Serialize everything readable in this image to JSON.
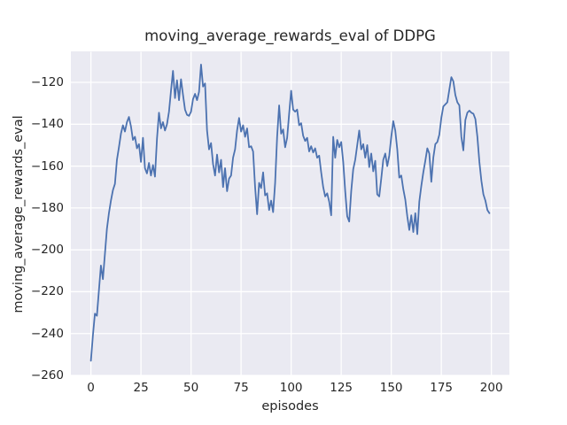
{
  "chart_data": {
    "type": "line",
    "title": "moving_average_rewards_eval of DDPG",
    "xlabel": "episodes",
    "ylabel": "moving_average_rewards_eval",
    "x_ticks": [
      0,
      25,
      50,
      75,
      100,
      125,
      150,
      175,
      200
    ],
    "x_tick_labels": [
      "0",
      "25",
      "50",
      "75",
      "100",
      "125",
      "150",
      "175",
      "200"
    ],
    "y_ticks": [
      -260,
      -240,
      -220,
      -200,
      -180,
      -160,
      -140,
      -120
    ],
    "y_tick_labels": [
      "−260",
      "−240",
      "−220",
      "−200",
      "−180",
      "−160",
      "−140",
      "−120"
    ],
    "xlim": [
      -10,
      209
    ],
    "ylim": [
      -260.2,
      -105.4
    ],
    "grid": true,
    "legend_position": "none",
    "style": {
      "fig_bg": "#ffffff",
      "axes_bg": "#eaeaf2",
      "grid_color": "#ffffff",
      "line_color": "#4c72b0",
      "text_color": "#262626"
    },
    "series": [
      {
        "name": "moving_average_rewards_eval",
        "x_start": 0,
        "x_step": 1,
        "values": [
          -253,
          -241,
          -230.5,
          -231.5,
          -219.5,
          -207.5,
          -214,
          -202,
          -190,
          -182.5,
          -176.5,
          -171.5,
          -168.5,
          -157,
          -151,
          -144.5,
          -140.5,
          -143.5,
          -139,
          -136.5,
          -141,
          -147.5,
          -146,
          -151.5,
          -149.5,
          -158,
          -146.5,
          -161,
          -163.5,
          -158.5,
          -164.5,
          -159.5,
          -165,
          -147,
          -134.5,
          -142,
          -139,
          -143,
          -140,
          -134,
          -124,
          -114.5,
          -127.5,
          -119,
          -128.5,
          -118.5,
          -126,
          -133,
          -135.5,
          -136,
          -134,
          -128,
          -125.5,
          -128.5,
          -124.5,
          -111.5,
          -122,
          -120.5,
          -143,
          -152,
          -149,
          -159,
          -164.5,
          -154.5,
          -163,
          -157,
          -170,
          -161,
          -172,
          -166,
          -164.5,
          -156,
          -152,
          -143,
          -137,
          -143.5,
          -140.5,
          -146,
          -142,
          -151,
          -150.5,
          -153,
          -170,
          -183,
          -168,
          -170.5,
          -163,
          -174,
          -173,
          -181,
          -176.5,
          -182,
          -168,
          -146,
          -131,
          -144.5,
          -142.5,
          -151,
          -146.5,
          -135,
          -124,
          -133,
          -134,
          -133,
          -140.5,
          -139.5,
          -145.5,
          -148,
          -146.5,
          -153,
          -150.5,
          -153.5,
          -151.5,
          -156,
          -155,
          -163,
          -170,
          -174.5,
          -173,
          -177,
          -183.5,
          -146,
          -156,
          -147.5,
          -151,
          -148.5,
          -158,
          -172,
          -184,
          -186.5,
          -172,
          -161.5,
          -157,
          -150,
          -143,
          -152,
          -149.5,
          -156,
          -150,
          -160.5,
          -154,
          -162.5,
          -157.5,
          -173.5,
          -174.5,
          -166,
          -157,
          -154,
          -160,
          -155,
          -146,
          -138.5,
          -143,
          -152,
          -165.5,
          -164.5,
          -171,
          -176,
          -184,
          -190.5,
          -183.5,
          -191.5,
          -182.5,
          -192.5,
          -177,
          -169.5,
          -163,
          -157.5,
          -151.5,
          -154,
          -167.5,
          -156,
          -149.5,
          -148.5,
          -145,
          -137,
          -131.5,
          -130.5,
          -129.5,
          -123.5,
          -117.5,
          -119.5,
          -126,
          -129.5,
          -131,
          -146,
          -152.5,
          -138,
          -134.5,
          -133.5,
          -134.5,
          -135,
          -137.5,
          -146,
          -158,
          -167,
          -173.5,
          -176.5,
          -181,
          -182.5
        ]
      }
    ]
  }
}
